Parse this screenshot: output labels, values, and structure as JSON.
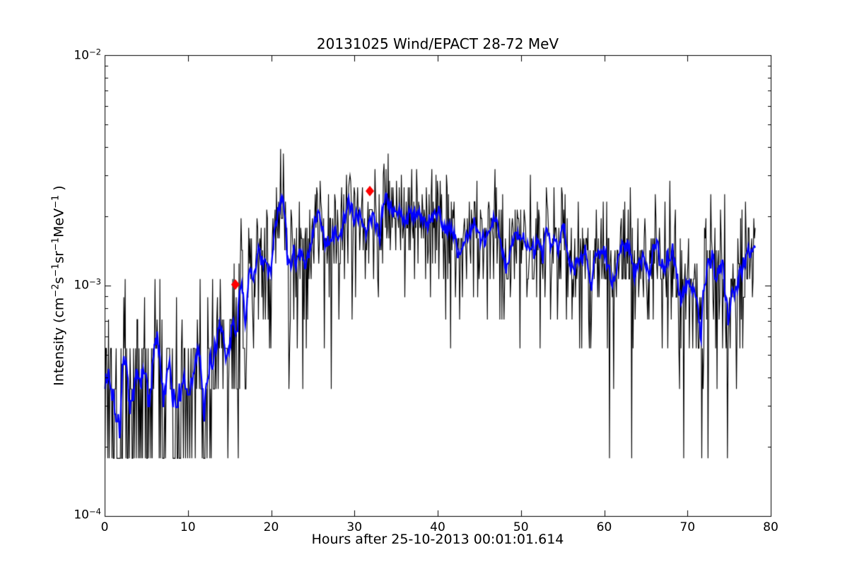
{
  "figure": {
    "background": "#ffffff",
    "title": "20131025 Wind/EPACT 28-72 MeV",
    "xlabel": "Hours after 25-10-2013 00:01:01.614",
    "ylabel_segments": [
      {
        "type": "text",
        "text": "Intensity (cm"
      },
      {
        "type": "sup",
        "text": "−2"
      },
      {
        "type": "text",
        "text": "s"
      },
      {
        "type": "sup",
        "text": "−1"
      },
      {
        "type": "text",
        "text": "sr"
      },
      {
        "type": "sup",
        "text": "−1"
      },
      {
        "type": "text",
        "text": "MeV"
      },
      {
        "type": "sup",
        "text": "−1"
      },
      {
        "type": "text",
        "text": " )"
      }
    ]
  },
  "chart_data": {
    "type": "line",
    "title": "20131025 Wind/EPACT 28-72 MeV",
    "xlabel": "Hours after 25-10-2013 00:01:01.614",
    "ylabel": "Intensity (cm^-2 s^-1 sr^-1 MeV^-1)",
    "xscale": "linear",
    "yscale": "log",
    "xlim": [
      0,
      80
    ],
    "ylim": [
      0.0001,
      0.01
    ],
    "grid": false,
    "legend": null,
    "x_tick_values": [
      0,
      10,
      20,
      30,
      40,
      50,
      60,
      70,
      80
    ],
    "x_tick_labels": [
      "0",
      "10",
      "20",
      "30",
      "40",
      "50",
      "60",
      "70",
      "80"
    ],
    "y_tick_values": [
      0.01,
      0.001,
      0.0001
    ],
    "y_tick_labels": [
      {
        "base": "10",
        "exp": "−2"
      },
      {
        "base": "10",
        "exp": "−3"
      },
      {
        "base": "10",
        "exp": "−4"
      }
    ],
    "colors": {
      "raw": "#000000",
      "smoothed": "#0000ff",
      "markers": "#ff0000",
      "axes": "#000000"
    },
    "series": [
      {
        "name": "raw 28-72 MeV proton intensity (noisy quantized counts)",
        "type": "noisy-line",
        "color_key": "raw",
        "line_width": 1.1,
        "quantum": 0.000178,
        "dt_hours": 0.0833333,
        "t_start": 0.05,
        "t_end": 78.15,
        "seed": 1337
      },
      {
        "name": "running-mean smoothed intensity",
        "type": "smoothed-line",
        "color_key": "smoothed",
        "line_width": 2.2,
        "window": 9
      },
      {
        "name": "event onset and peak markers",
        "type": "markers",
        "color_key": "markers",
        "marker": "diamond",
        "marker_half_width": 6,
        "marker_half_height": 7.5,
        "points": [
          [
            15.7,
            0.00101
          ],
          [
            31.85,
            0.00257
          ]
        ]
      }
    ],
    "trend_points_hour_intensity": [
      [
        0.0,
        0.00036
      ],
      [
        0.8,
        0.00044
      ],
      [
        1.6,
        0.00034
      ],
      [
        2.4,
        0.00039
      ],
      [
        3.2,
        0.00035
      ],
      [
        4.0,
        0.00042
      ],
      [
        5.0,
        0.00038
      ],
      [
        5.8,
        0.00043
      ],
      [
        6.8,
        0.0003
      ],
      [
        7.6,
        0.00038
      ],
      [
        8.4,
        0.00035
      ],
      [
        9.2,
        0.00034
      ],
      [
        10.0,
        0.00037
      ],
      [
        10.6,
        0.00044
      ],
      [
        11.2,
        0.00035
      ],
      [
        12.0,
        0.00043
      ],
      [
        13.0,
        0.0005
      ],
      [
        14.0,
        0.00058
      ],
      [
        15.0,
        0.00067
      ],
      [
        15.7,
        0.00082
      ],
      [
        16.3,
        0.00076
      ],
      [
        17.0,
        0.00086
      ],
      [
        18.0,
        0.00105
      ],
      [
        19.0,
        0.0013
      ],
      [
        20.0,
        0.00175
      ],
      [
        21.3,
        0.0022
      ],
      [
        22.3,
        0.00145
      ],
      [
        23.5,
        0.00175
      ],
      [
        25.0,
        0.0018
      ],
      [
        26.5,
        0.0017
      ],
      [
        28.0,
        0.0019
      ],
      [
        29.5,
        0.002
      ],
      [
        30.8,
        0.0022
      ],
      [
        32.0,
        0.00205
      ],
      [
        32.7,
        0.00185
      ],
      [
        33.7,
        0.0023
      ],
      [
        34.5,
        0.00235
      ],
      [
        35.5,
        0.0021
      ],
      [
        36.5,
        0.002
      ],
      [
        37.5,
        0.0021
      ],
      [
        38.5,
        0.0019
      ],
      [
        40.0,
        0.002
      ],
      [
        41.0,
        0.0018
      ],
      [
        42.5,
        0.0016
      ],
      [
        44.0,
        0.00195
      ],
      [
        45.5,
        0.0016
      ],
      [
        47.0,
        0.00165
      ],
      [
        48.5,
        0.00145
      ],
      [
        50.0,
        0.0016
      ],
      [
        52.0,
        0.0015
      ],
      [
        54.0,
        0.00155
      ],
      [
        56.0,
        0.00145
      ],
      [
        58.0,
        0.0015
      ],
      [
        60.0,
        0.0014
      ],
      [
        62.0,
        0.00145
      ],
      [
        64.0,
        0.0013
      ],
      [
        66.0,
        0.00135
      ],
      [
        67.2,
        0.00145
      ],
      [
        68.8,
        0.0011
      ],
      [
        70.0,
        0.0012
      ],
      [
        71.5,
        0.00095
      ],
      [
        73.0,
        0.00115
      ],
      [
        74.5,
        0.00098
      ],
      [
        76.0,
        0.0011
      ],
      [
        77.0,
        0.00125
      ],
      [
        78.15,
        0.00145
      ]
    ]
  }
}
